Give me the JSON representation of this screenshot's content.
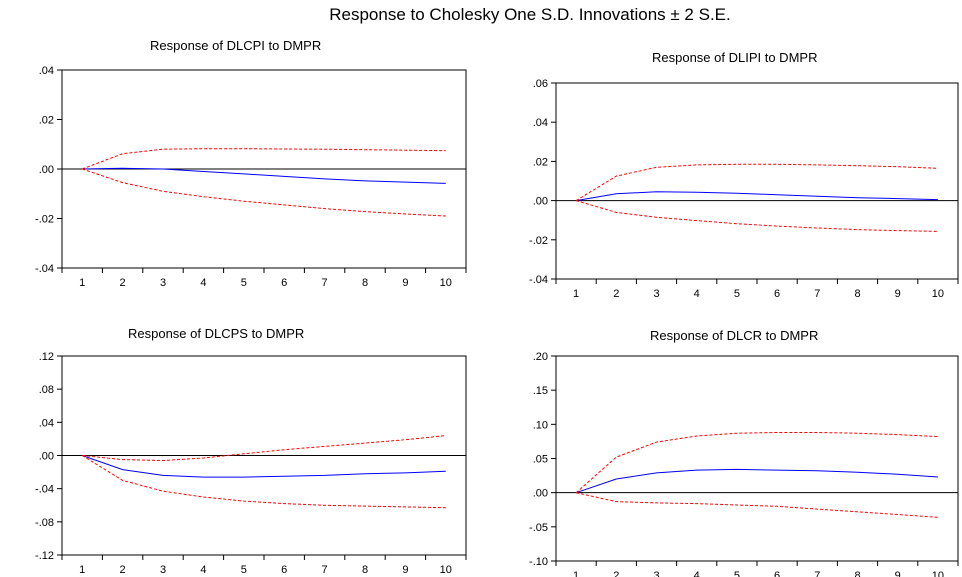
{
  "figure": {
    "title": "Response to Cholesky One S.D. Innovations ± 2 S.E."
  },
  "colors": {
    "response": "#0000ff",
    "bands": "#ff0000",
    "zero_line": "#000000",
    "frame": "#000000"
  },
  "chart_data": [
    {
      "type": "line",
      "title": "Response of DLCPI to DMPR",
      "x": [
        1,
        2,
        3,
        4,
        5,
        6,
        7,
        8,
        9,
        10
      ],
      "x_tick_labels": [
        "1",
        "2",
        "3",
        "4",
        "5",
        "6",
        "7",
        "8",
        "9",
        "10"
      ],
      "ylim": [
        -0.04,
        0.04
      ],
      "y_ticks": [
        -0.04,
        -0.02,
        0,
        0.02,
        0.04
      ],
      "y_tick_labels": [
        "-.04",
        "-.02",
        ".00",
        ".02",
        ".04"
      ],
      "series": [
        {
          "role": "response",
          "values": [
            0,
            0.0003,
            0.0,
            -0.001,
            -0.002,
            -0.003,
            -0.004,
            -0.0048,
            -0.0053,
            -0.0058
          ]
        },
        {
          "role": "upper",
          "values": [
            0,
            0.0062,
            0.008,
            0.0082,
            0.0082,
            0.0081,
            0.008,
            0.0078,
            0.0076,
            0.0074
          ]
        },
        {
          "role": "lower",
          "values": [
            0,
            -0.0055,
            -0.009,
            -0.0112,
            -0.013,
            -0.0145,
            -0.016,
            -0.0172,
            -0.0182,
            -0.019
          ]
        }
      ]
    },
    {
      "type": "line",
      "title": "Response of DLIPI to DMPR",
      "x": [
        1,
        2,
        3,
        4,
        5,
        6,
        7,
        8,
        9,
        10
      ],
      "x_tick_labels": [
        "1",
        "2",
        "3",
        "4",
        "5",
        "6",
        "7",
        "8",
        "9",
        "10"
      ],
      "ylim": [
        -0.04,
        0.06
      ],
      "y_ticks": [
        -0.04,
        -0.02,
        0,
        0.02,
        0.04,
        0.06
      ],
      "y_tick_labels": [
        "-.04",
        "-.02",
        ".00",
        ".02",
        ".04",
        ".06"
      ],
      "series": [
        {
          "role": "response",
          "values": [
            0,
            0.0035,
            0.0045,
            0.0043,
            0.0037,
            0.003,
            0.0022,
            0.0015,
            0.001,
            0.0005
          ]
        },
        {
          "role": "upper",
          "values": [
            0,
            0.0125,
            0.017,
            0.0182,
            0.0185,
            0.0185,
            0.0182,
            0.0178,
            0.0173,
            0.0165
          ]
        },
        {
          "role": "lower",
          "values": [
            0,
            -0.006,
            -0.0085,
            -0.0102,
            -0.0118,
            -0.013,
            -0.014,
            -0.0148,
            -0.0153,
            -0.0157
          ]
        }
      ]
    },
    {
      "type": "line",
      "title": "Response of DLCPS to DMPR",
      "x": [
        1,
        2,
        3,
        4,
        5,
        6,
        7,
        8,
        9,
        10
      ],
      "x_tick_labels": [
        "1",
        "2",
        "3",
        "4",
        "5",
        "6",
        "7",
        "8",
        "9",
        "10"
      ],
      "ylim": [
        -0.12,
        0.12
      ],
      "y_ticks": [
        -0.12,
        -0.08,
        -0.04,
        0,
        0.04,
        0.08,
        0.12
      ],
      "y_tick_labels": [
        "-.12",
        "-.08",
        "-.04",
        ".00",
        ".04",
        ".08",
        ".12"
      ],
      "series": [
        {
          "role": "response",
          "values": [
            0,
            -0.017,
            -0.024,
            -0.026,
            -0.026,
            -0.025,
            -0.024,
            -0.022,
            -0.021,
            -0.019
          ]
        },
        {
          "role": "upper",
          "values": [
            0,
            -0.005,
            -0.006,
            -0.003,
            0.002,
            0.007,
            0.011,
            0.015,
            0.019,
            0.024
          ]
        },
        {
          "role": "lower",
          "values": [
            0,
            -0.03,
            -0.043,
            -0.05,
            -0.055,
            -0.058,
            -0.06,
            -0.061,
            -0.062,
            -0.063
          ]
        }
      ]
    },
    {
      "type": "line",
      "title": "Response of DLCR to DMPR",
      "x": [
        1,
        2,
        3,
        4,
        5,
        6,
        7,
        8,
        9,
        10
      ],
      "x_tick_labels": [
        "1",
        "2",
        "3",
        "4",
        "5",
        "6",
        "7",
        "8",
        "9",
        "10"
      ],
      "ylim": [
        -0.1,
        0.2
      ],
      "y_ticks": [
        -0.1,
        -0.05,
        0,
        0.05,
        0.1,
        0.15,
        0.2
      ],
      "y_tick_labels": [
        "-.10",
        "-.05",
        ".00",
        ".05",
        ".10",
        ".15",
        ".20"
      ],
      "series": [
        {
          "role": "response",
          "values": [
            0,
            0.02,
            0.029,
            0.033,
            0.034,
            0.033,
            0.032,
            0.03,
            0.027,
            0.023
          ]
        },
        {
          "role": "upper",
          "values": [
            0,
            0.052,
            0.074,
            0.083,
            0.087,
            0.088,
            0.088,
            0.087,
            0.085,
            0.082
          ]
        },
        {
          "role": "lower",
          "values": [
            0,
            -0.013,
            -0.015,
            -0.016,
            -0.018,
            -0.02,
            -0.024,
            -0.028,
            -0.032,
            -0.036
          ]
        }
      ]
    }
  ]
}
